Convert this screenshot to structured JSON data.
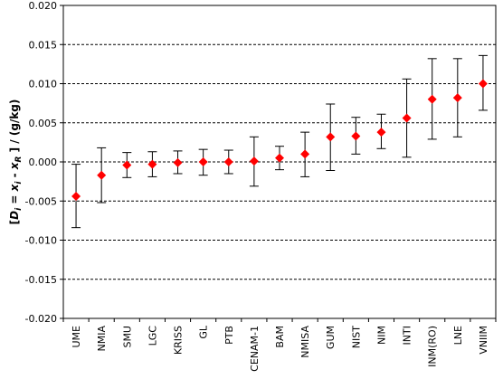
{
  "chart_data": {
    "type": "scatter",
    "ylabel_parts": {
      "open": "[",
      "D": "D",
      "i1": "i",
      "eq": " = ",
      "x1": "x",
      "i2": "i",
      "minus": " - ",
      "x2": "x",
      "R": "R",
      "close": " ] / (g/kg)"
    },
    "ylim": [
      -0.02,
      0.02
    ],
    "yticks": [
      "0.020",
      "0.015",
      "0.010",
      "0.005",
      "0.000",
      "-0.005",
      "-0.010",
      "-0.015",
      "-0.020"
    ],
    "grid": "horizontal dashed",
    "categories": [
      "UME",
      "NMIA",
      "SMU",
      "LGC",
      "KRISS",
      "GL",
      "PTB",
      "CENAM-1",
      "BAM",
      "NMISA",
      "GUM",
      "NIST",
      "NIM",
      "INTI",
      "INM(RO)",
      "LNE",
      "VNIIM"
    ],
    "values": [
      -0.0044,
      -0.0017,
      -0.0004,
      -0.0003,
      -0.0001,
      0.0,
      0.0,
      0.0001,
      0.0005,
      0.001,
      0.0032,
      0.0033,
      0.0038,
      0.0056,
      0.008,
      0.0082,
      0.01
    ],
    "err_upper": [
      -0.0003,
      0.0018,
      0.0012,
      0.0013,
      0.0014,
      0.0016,
      0.0015,
      0.0032,
      0.002,
      0.0038,
      0.0074,
      0.0057,
      0.0061,
      0.0106,
      0.0132,
      0.0132,
      0.0136
    ],
    "err_lower": [
      -0.0084,
      -0.0052,
      -0.002,
      -0.0019,
      -0.0015,
      -0.0017,
      -0.0015,
      -0.0031,
      -0.001,
      -0.0019,
      -0.0011,
      0.001,
      0.0017,
      0.0006,
      0.0029,
      0.0032,
      0.0066
    ],
    "marker_color": "#ff0000",
    "errorbar_color": "#000000"
  }
}
